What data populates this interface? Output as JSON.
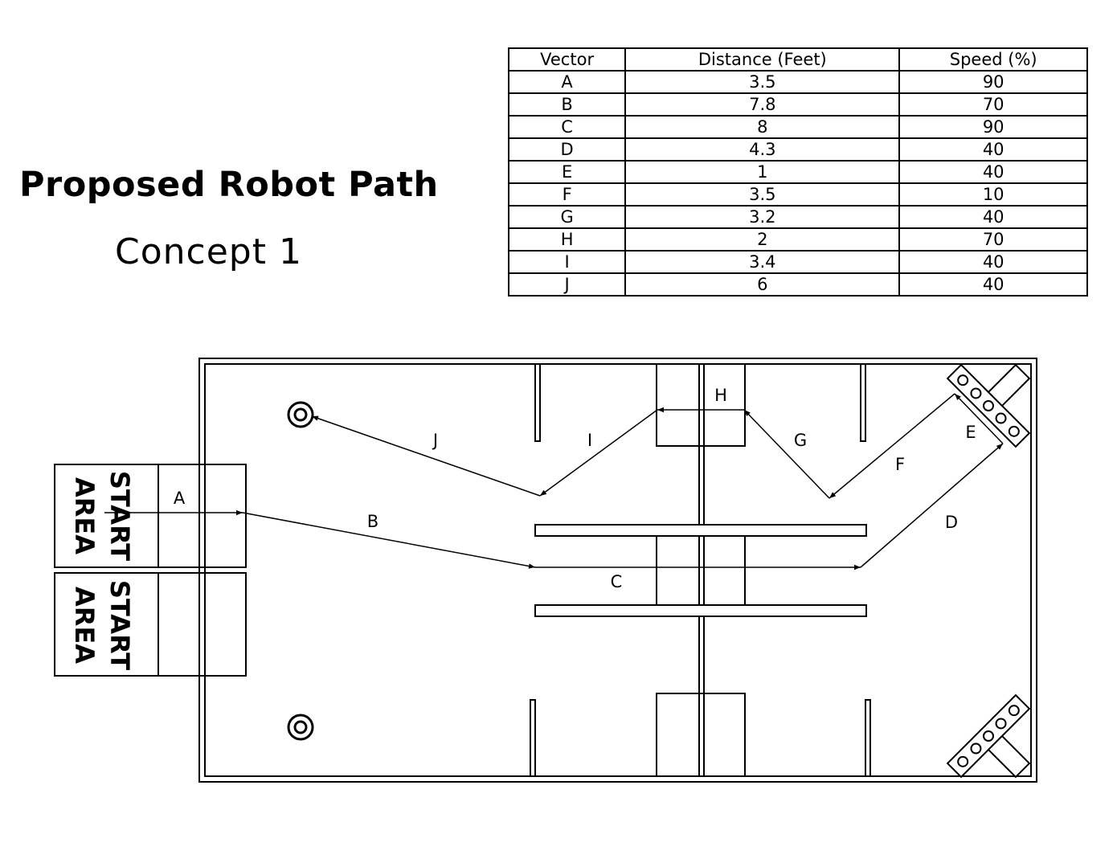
{
  "header": {
    "title": "Proposed Robot Path",
    "subtitle": "Concept  1"
  },
  "table": {
    "headers": [
      "Vector",
      "Distance (Feet)",
      "Speed (%)"
    ],
    "rows": [
      [
        "A",
        "3.5",
        "90"
      ],
      [
        "B",
        "7.8",
        "70"
      ],
      [
        "C",
        "8",
        "90"
      ],
      [
        "D",
        "4.3",
        "40"
      ],
      [
        "E",
        "1",
        "40"
      ],
      [
        "F",
        "3.5",
        "10"
      ],
      [
        "G",
        "3.2",
        "40"
      ],
      [
        "H",
        "2",
        "70"
      ],
      [
        "I",
        "3.4",
        "40"
      ],
      [
        "J",
        "6",
        "40"
      ]
    ]
  },
  "field": {
    "start_area_label_line1": "START",
    "start_area_label_line2": "AREA",
    "vectors": [
      "A",
      "B",
      "C",
      "D",
      "E",
      "F",
      "G",
      "H",
      "I",
      "J"
    ]
  }
}
